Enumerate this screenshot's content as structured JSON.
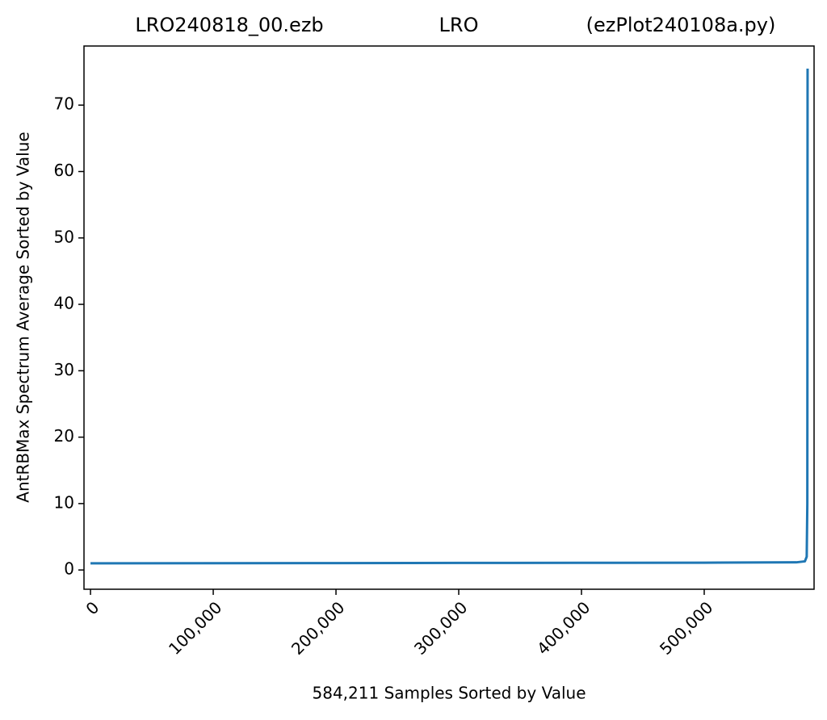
{
  "chart_data": {
    "type": "line",
    "title": [
      "LRO240818_00.ezb",
      "LRO",
      "(ezPlot240108a.py)"
    ],
    "xlabel": "584,211 Samples Sorted by Value",
    "ylabel": "AntRBMax Spectrum Average Sorted by Value",
    "x": [
      0,
      100000,
      200000,
      300000,
      400000,
      500000,
      575000,
      582000,
      583500,
      584000,
      584210
    ],
    "series": [
      {
        "name": "AntRBMax",
        "color": "#1f77b4",
        "values": [
          1.0,
          1.02,
          1.04,
          1.06,
          1.08,
          1.1,
          1.15,
          1.3,
          2,
          10,
          75.5
        ]
      }
    ],
    "xlim": [
      -5300,
      589500
    ],
    "ylim": [
      -2.9,
      78.9
    ],
    "xticks": [
      0,
      {
        "value": 100000,
        "label": "100,000"
      },
      {
        "value": 200000,
        "label": "200,000"
      },
      {
        "value": 300000,
        "label": "300,000"
      },
      {
        "value": 400000,
        "label": "400,000"
      },
      {
        "value": 500000,
        "label": "500,000"
      }
    ],
    "yticks": [
      0,
      10,
      20,
      30,
      40,
      50,
      60,
      70
    ],
    "grid": false
  }
}
